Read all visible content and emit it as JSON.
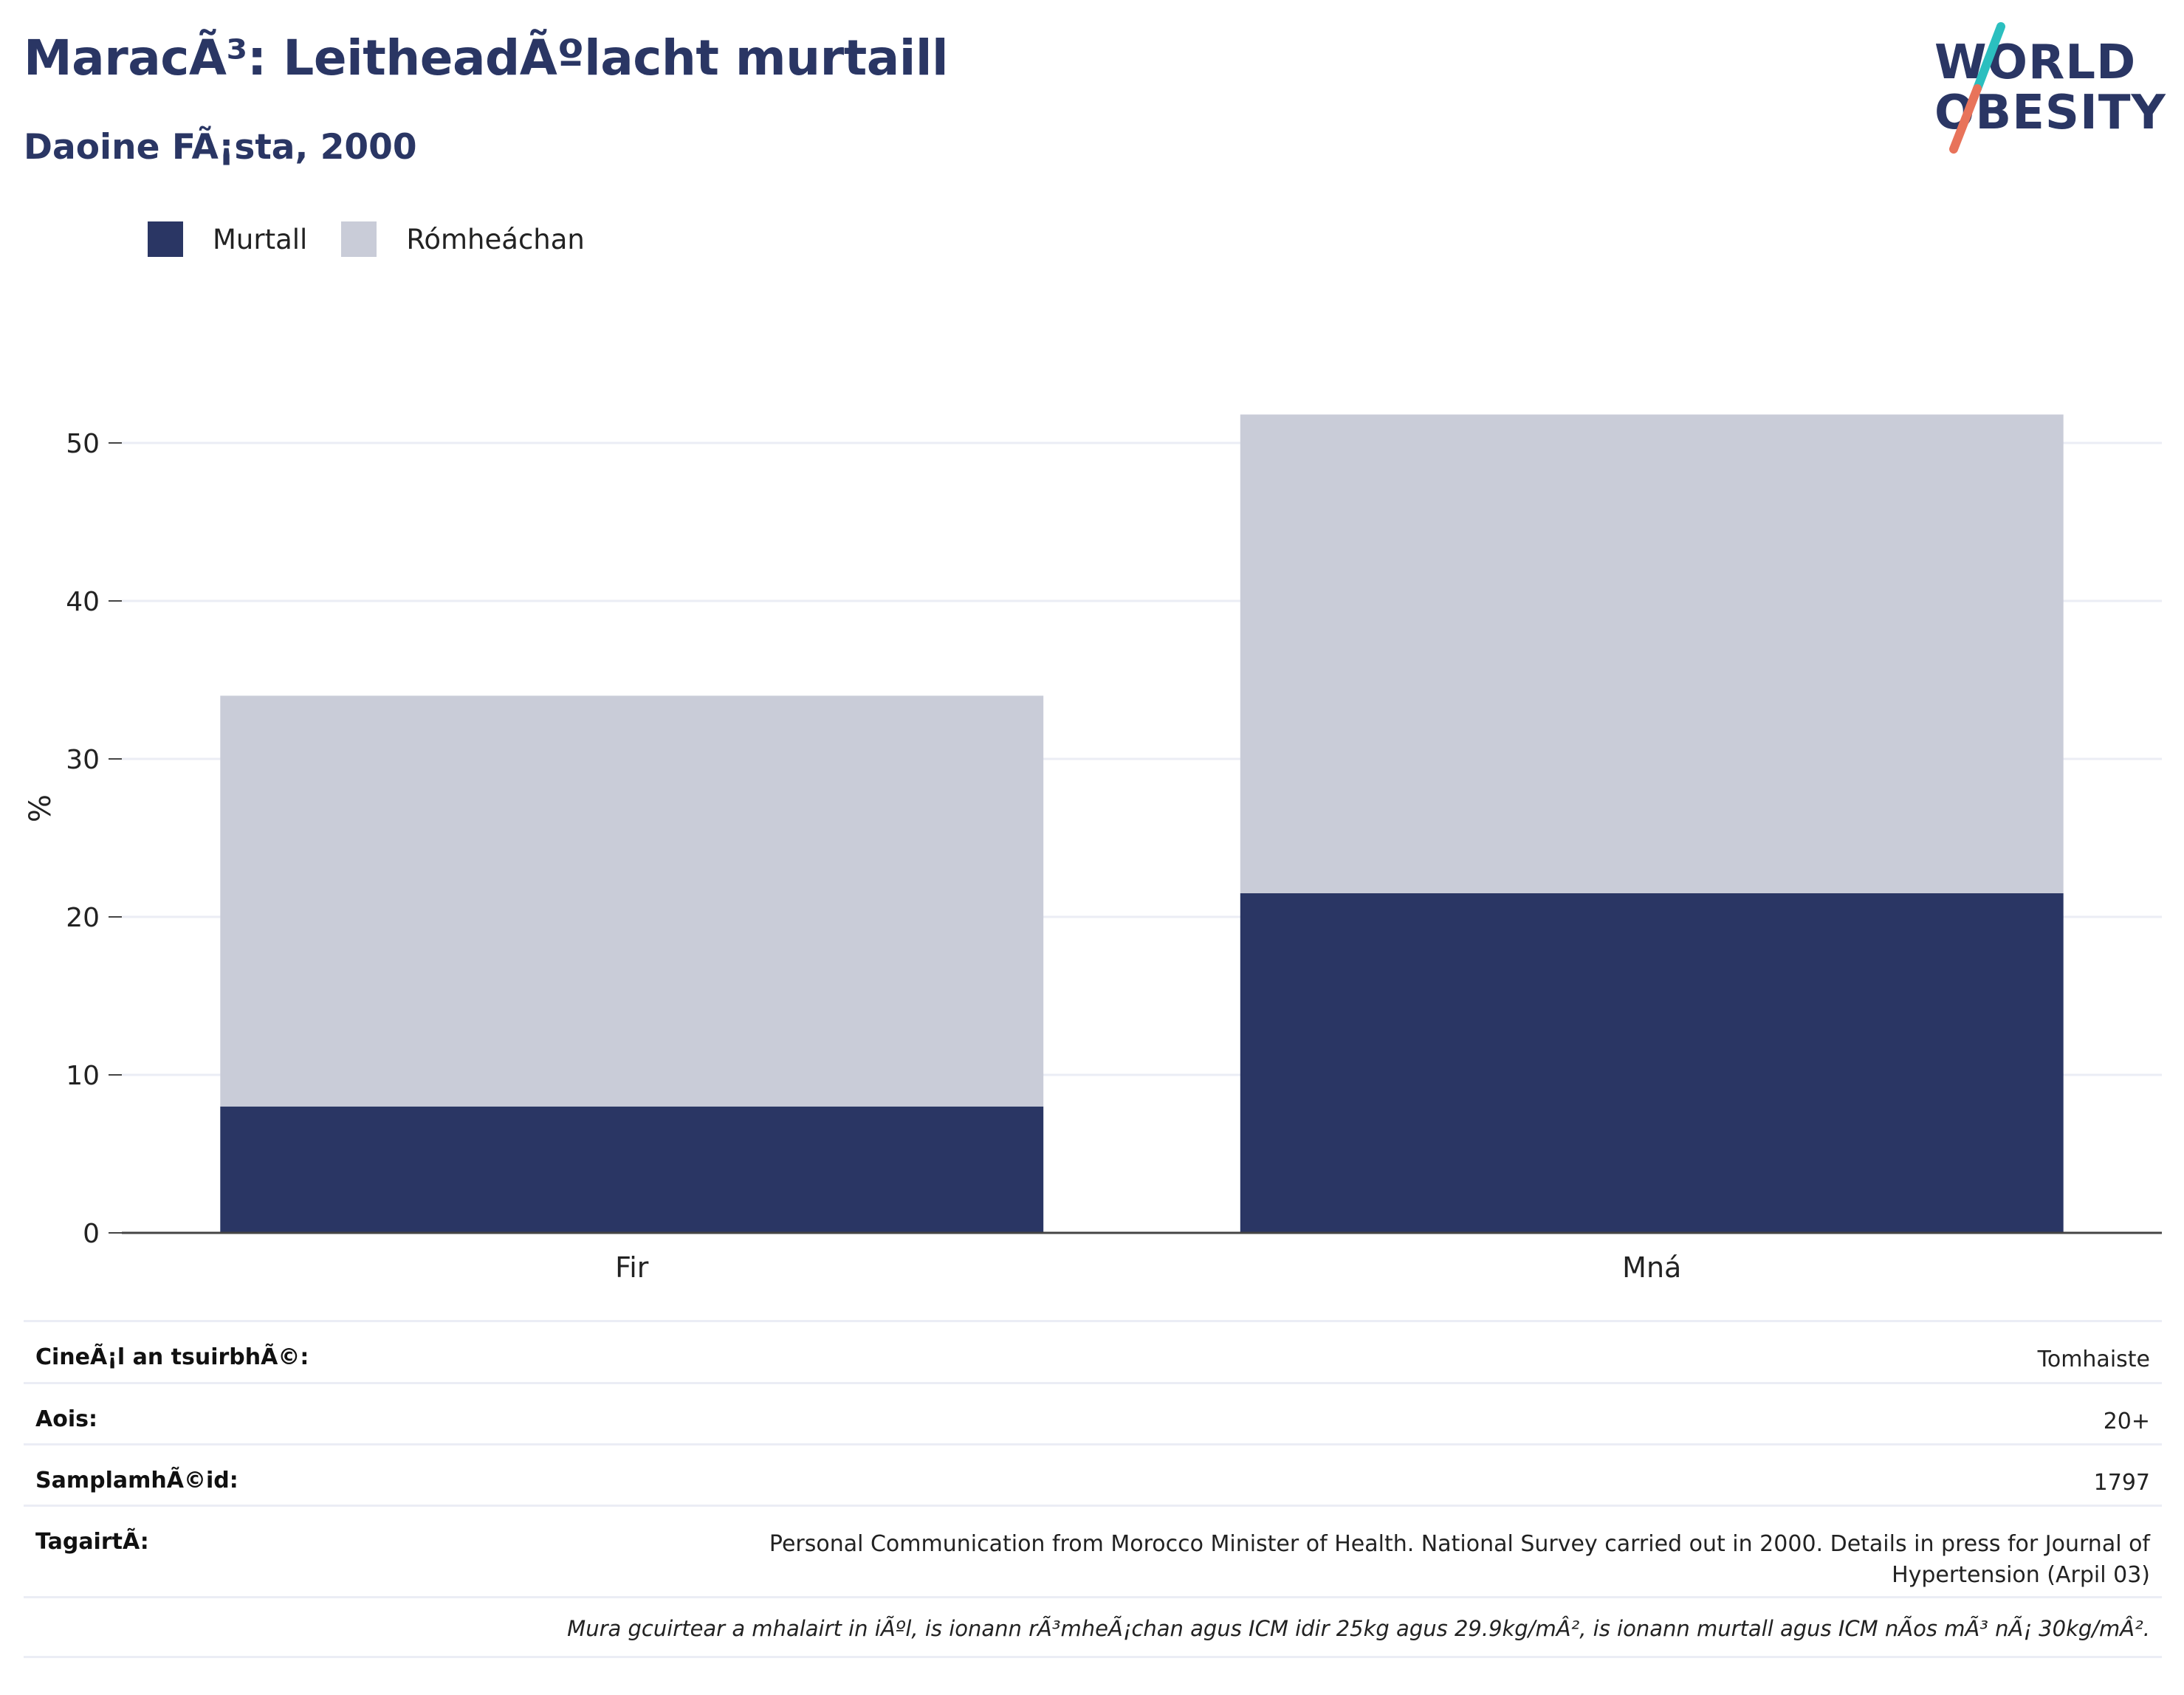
{
  "header": {
    "title": "MaracÃ³: LeitheadÃºlacht murtaill",
    "subtitle": "Daoine FÃ¡sta, 2000"
  },
  "logo": {
    "line1": "WORLD",
    "line2": "OBESITY",
    "accent_teal": "#2bbfbf",
    "accent_coral": "#e8735a"
  },
  "legend": [
    {
      "label": "Murtall",
      "color": "#2a3664"
    },
    {
      "label": "Rómheáchan",
      "color": "#c9ccd8"
    }
  ],
  "chart_data": {
    "type": "bar",
    "stacked": true,
    "categories": [
      "Fir",
      "Mná"
    ],
    "series": [
      {
        "name": "Murtall",
        "values": [
          8.0,
          21.5
        ],
        "color": "#2a3664"
      },
      {
        "name": "Rómheáchan",
        "values": [
          26.0,
          30.3
        ],
        "color": "#c9ccd8"
      }
    ],
    "ylabel": "%",
    "ylim": [
      0,
      52
    ],
    "yticks": [
      0,
      10,
      20,
      30,
      40,
      50
    ],
    "grid": true,
    "legend_position": "top-left"
  },
  "info": {
    "rows": [
      {
        "key": "CineÃ¡l an tsuirbhÃ©:",
        "value": "Tomhaiste"
      },
      {
        "key": "Aois:",
        "value": "20+"
      },
      {
        "key": "SamplamhÃ©id:",
        "value": "1797"
      },
      {
        "key": "TagairtÃ:",
        "value": "Personal Communication from Morocco Minister of Health. National Survey carried out in 2000. Details in press for Journal of Hypertension (Arpil 03)"
      }
    ],
    "note": "Mura gcuirtear a mhalairt in iÃºl, is ionann rÃ³mheÃ¡chan agus ICM idir 25kg agus 29.9kg/mÂ², is ionann murtall agus ICM nÃos mÃ³ nÃ¡ 30kg/mÂ²."
  }
}
